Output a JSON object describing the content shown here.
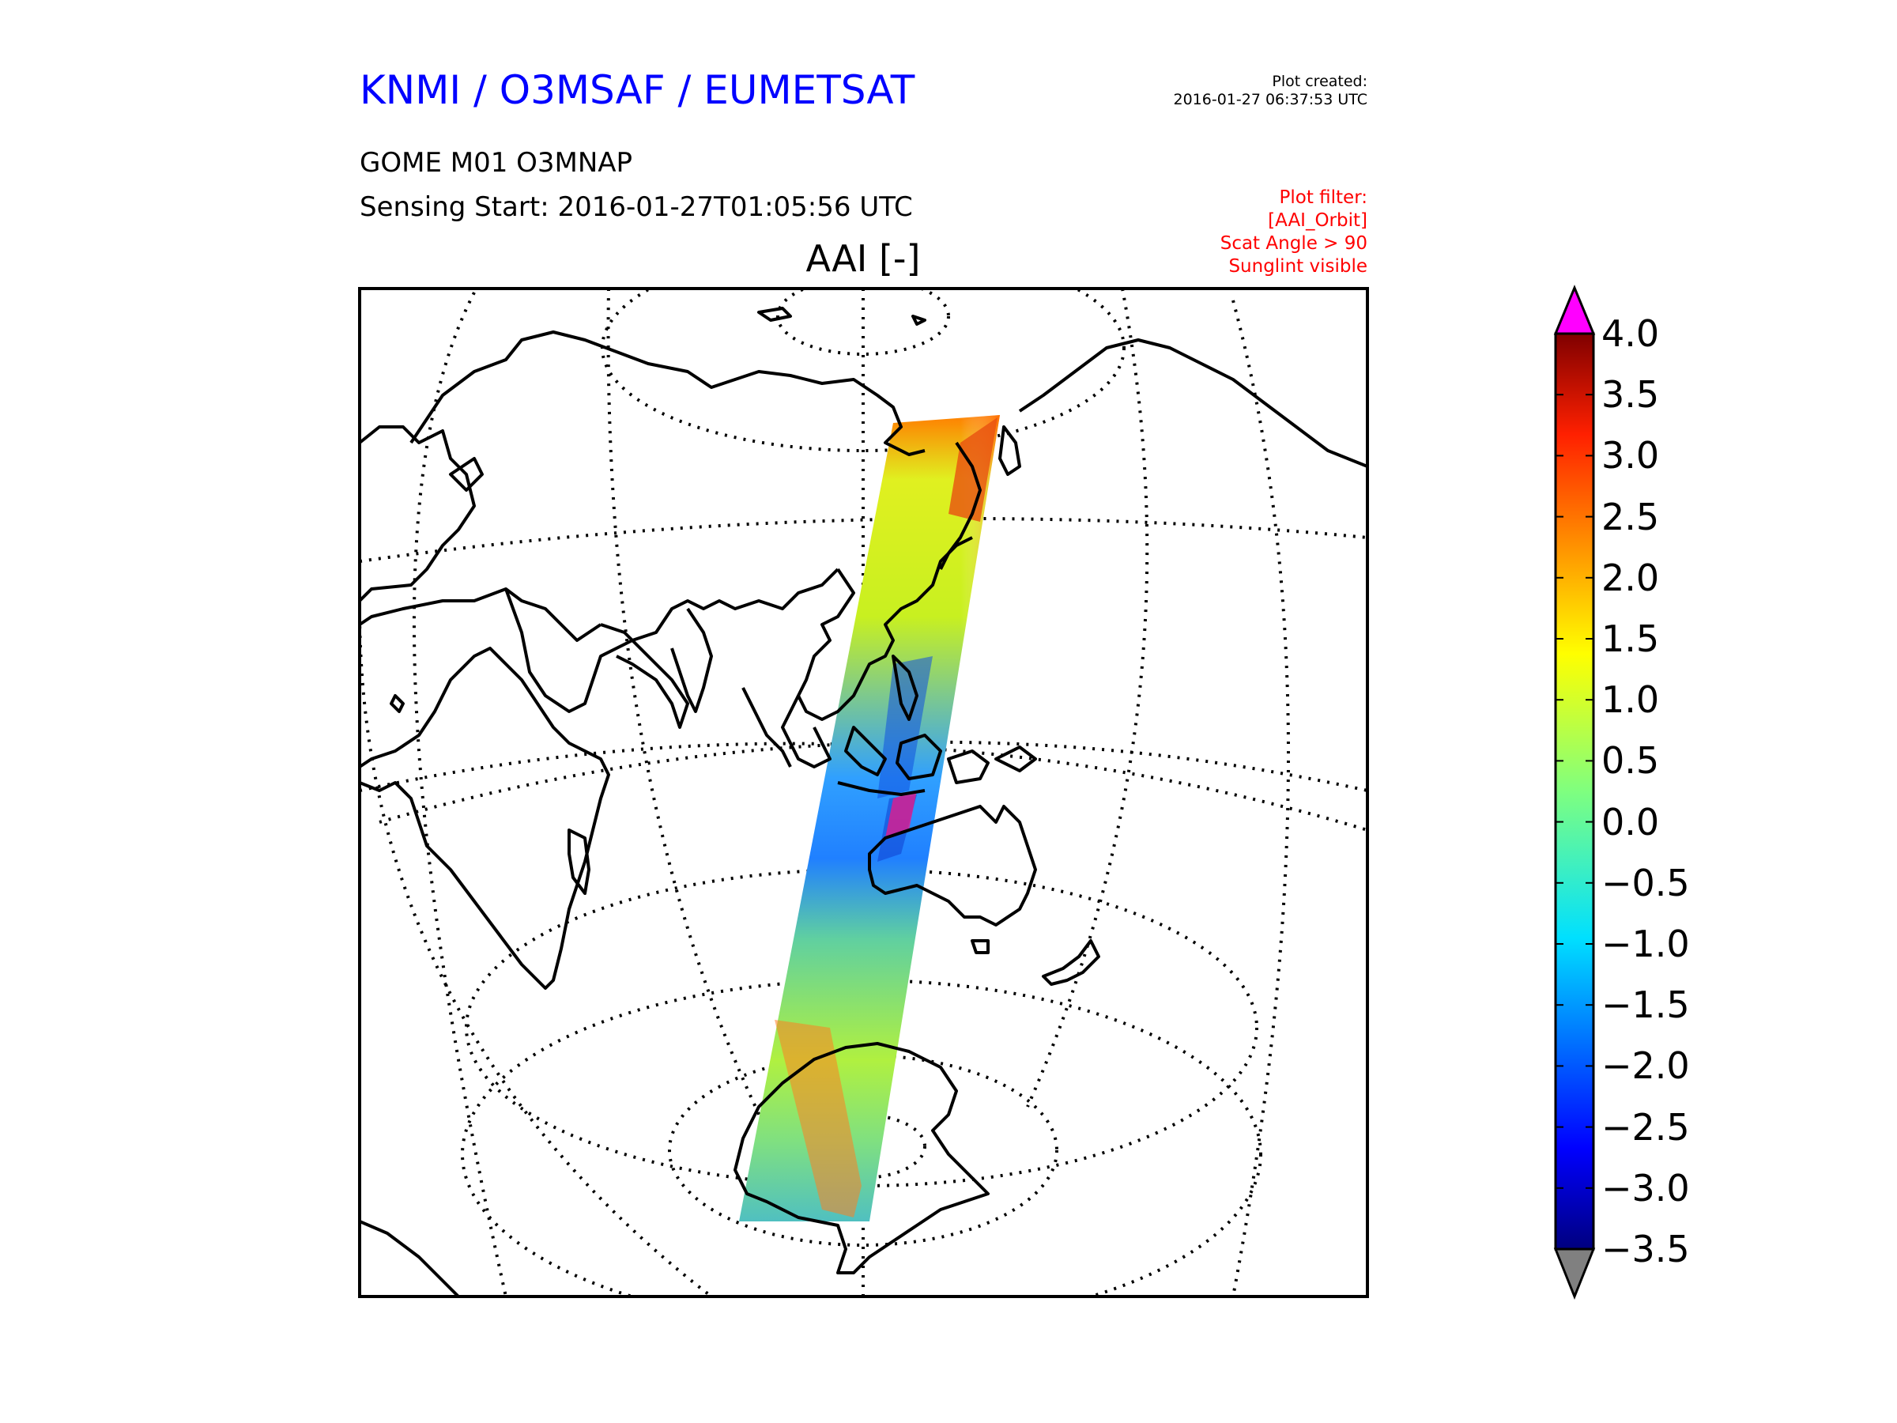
{
  "header": {
    "organization": "KNMI / O3MSAF / EUMETSAT",
    "product": "GOME M01 O3MNAP",
    "sensing_start": "Sensing Start: 2016-01-27T01:05:56 UTC",
    "plot_created_label": "Plot created:",
    "plot_created_time": "2016-01-27 06:37:53 UTC",
    "plot_filter": [
      "Plot filter:",
      "[AAI_Orbit]",
      "Scat Angle > 90",
      "Sunglint visible"
    ]
  },
  "map": {
    "title": "AAI [-]",
    "projection": "orthographic",
    "graticule": "dotted",
    "swath": "single orbit swath over East Asia, Maritime Continent, Australia to Antarctica"
  },
  "colorbar": {
    "ticks": [
      "4.0",
      "3.5",
      "3.0",
      "2.5",
      "2.0",
      "1.5",
      "1.0",
      "0.5",
      "0.0",
      "−0.5",
      "−1.0",
      "−1.5",
      "−2.0",
      "−2.5",
      "−3.0",
      "−3.5"
    ],
    "range": [
      -3.5,
      4.0
    ],
    "colormap": "jet",
    "over_color": "#ff00ff",
    "under_color": "#808080"
  },
  "colors": {
    "organization": "#0000ff",
    "filter": "#ff0000",
    "text": "#000000"
  }
}
